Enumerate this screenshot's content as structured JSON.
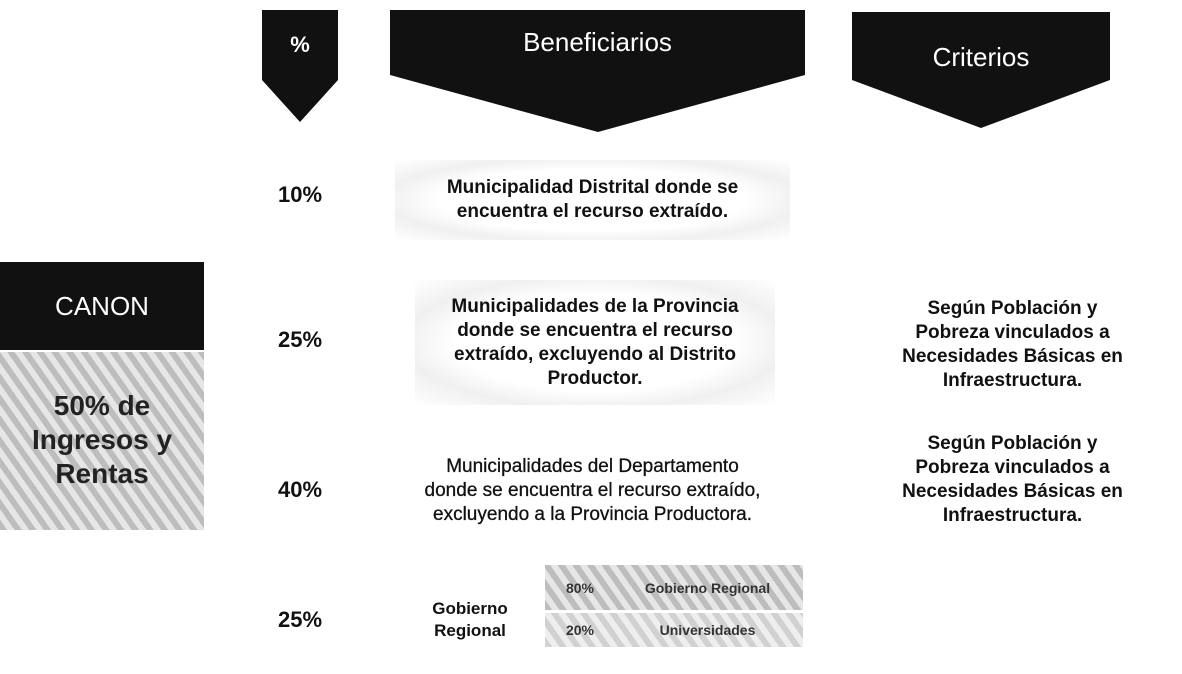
{
  "canon": {
    "title": "CANON",
    "subtitle": "50% de Ingresos y Rentas"
  },
  "headers": [
    "%",
    "Beneficiarios",
    "Criterios"
  ],
  "rows": [
    {
      "percent": "10%",
      "beneficiary": "Municipalidad Distrital donde se encuentra el recurso extraído."
    },
    {
      "percent": "25%",
      "beneficiary": "Municipalidades de la Provincia donde se encuentra el recurso extraído, excluyendo al Distrito Productor.",
      "criteria": "Según Población y Pobreza vinculados a Necesidades Básicas en Infraestructura."
    },
    {
      "percent": "40%",
      "beneficiary": "Municipalidades del Departamento donde se encuentra el recurso extraído, excluyendo a la Provincia Productora.",
      "criteria": "Según Población y Pobreza vinculados a Necesidades Básicas en Infraestructura."
    },
    {
      "percent": "25%",
      "beneficiary": "Gobierno Regional",
      "split": [
        {
          "percent": "80%",
          "label": "Gobierno Regional"
        },
        {
          "percent": "20%",
          "label": "Universidades"
        }
      ]
    }
  ]
}
